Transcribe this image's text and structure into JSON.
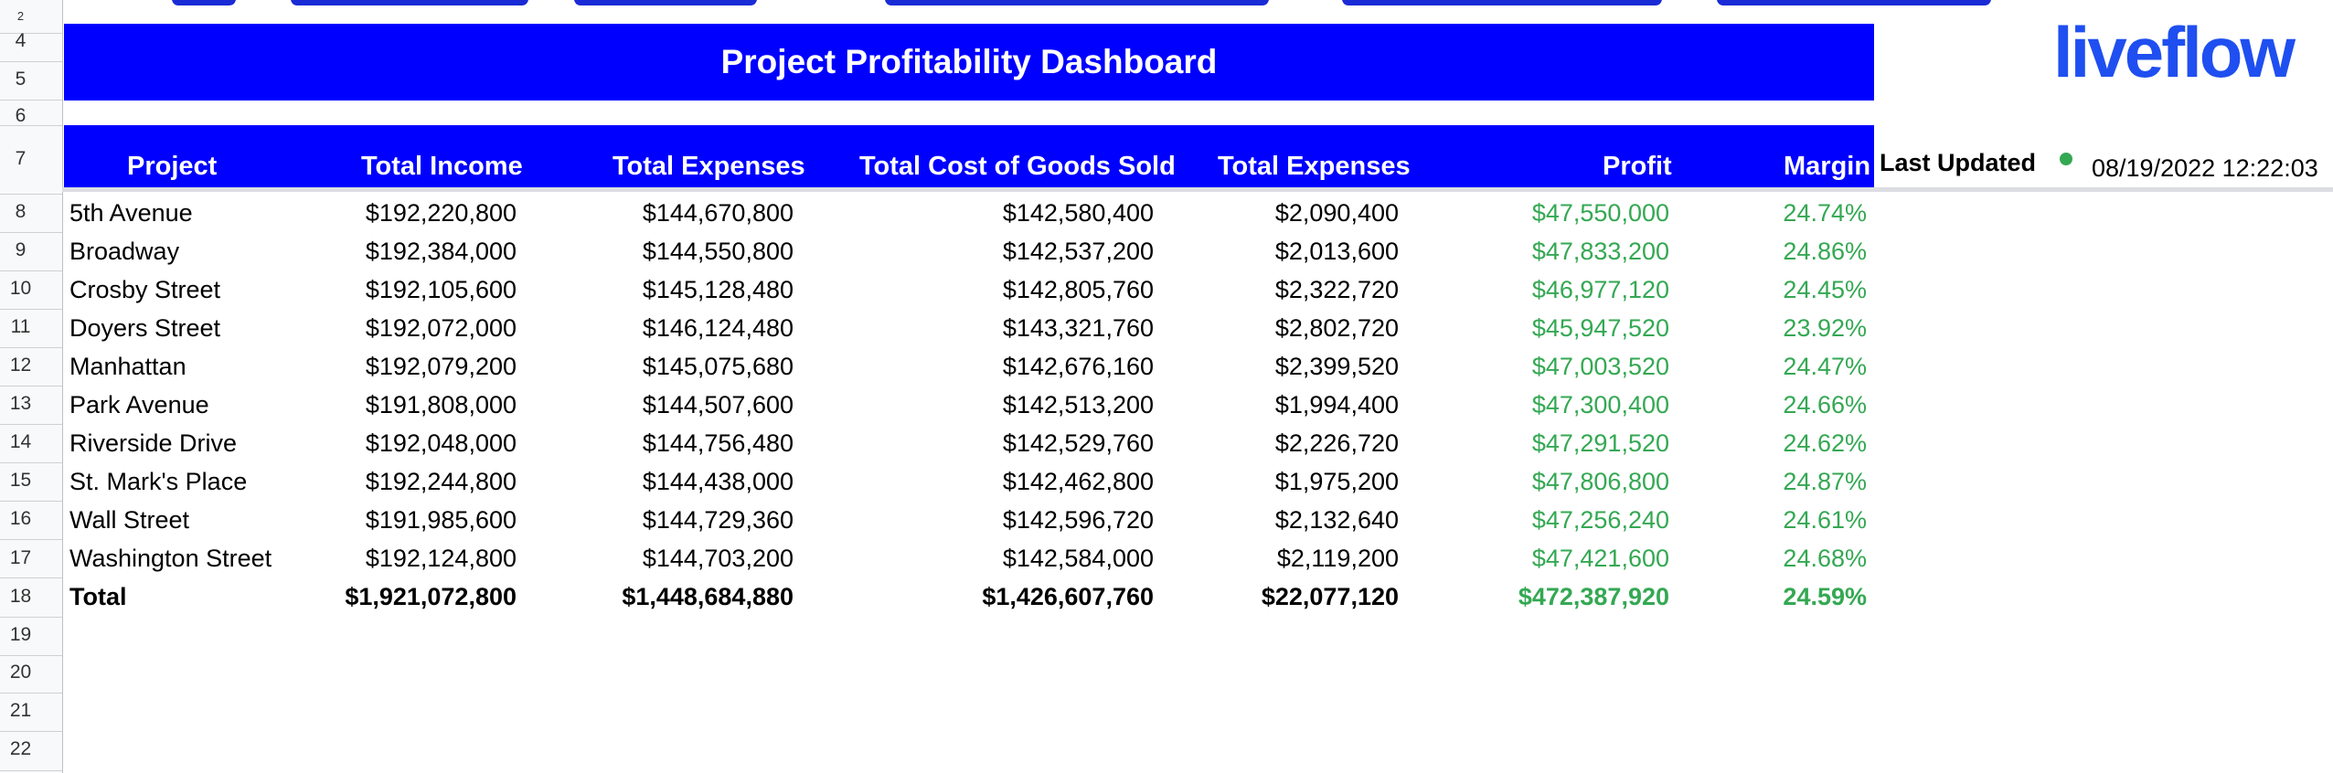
{
  "row_numbers": [
    "2",
    "4",
    "5",
    "6",
    "7",
    "8",
    "9",
    "10",
    "11",
    "12",
    "13",
    "14",
    "15",
    "16",
    "17",
    "18",
    "19",
    "20",
    "21",
    "22"
  ],
  "dashboard": {
    "title": "Project Profitability Dashboard",
    "logo": "liveflow",
    "last_updated_label": "Last Updated",
    "last_updated_value": "08/19/2022 12:22:03",
    "status_color": "#34a853",
    "accent_color": "#0000ff"
  },
  "table": {
    "headers": [
      "Project",
      "Total Income",
      "Total Expenses",
      "Total Cost of Goods Sold",
      "Total Expenses",
      "Profit",
      "Margin"
    ],
    "rows": [
      [
        "5th Avenue",
        "$192,220,800",
        "$144,670,800",
        "$142,580,400",
        "$2,090,400",
        "$47,550,000",
        "24.74%"
      ],
      [
        "Broadway",
        "$192,384,000",
        "$144,550,800",
        "$142,537,200",
        "$2,013,600",
        "$47,833,200",
        "24.86%"
      ],
      [
        "Crosby Street",
        "$192,105,600",
        "$145,128,480",
        "$142,805,760",
        "$2,322,720",
        "$46,977,120",
        "24.45%"
      ],
      [
        "Doyers Street",
        "$192,072,000",
        "$146,124,480",
        "$143,321,760",
        "$2,802,720",
        "$45,947,520",
        "23.92%"
      ],
      [
        "Manhattan",
        "$192,079,200",
        "$145,075,680",
        "$142,676,160",
        "$2,399,520",
        "$47,003,520",
        "24.47%"
      ],
      [
        "Park Avenue",
        "$191,808,000",
        "$144,507,600",
        "$142,513,200",
        "$1,994,400",
        "$47,300,400",
        "24.66%"
      ],
      [
        "Riverside Drive",
        "$192,048,000",
        "$144,756,480",
        "$142,529,760",
        "$2,226,720",
        "$47,291,520",
        "24.62%"
      ],
      [
        "St. Mark's Place",
        "$192,244,800",
        "$144,438,000",
        "$142,462,800",
        "$1,975,200",
        "$47,806,800",
        "24.87%"
      ],
      [
        "Wall Street",
        "$191,985,600",
        "$144,729,360",
        "$142,596,720",
        "$2,132,640",
        "$47,256,240",
        "24.61%"
      ],
      [
        "Washington Street",
        "$192,124,800",
        "$144,703,200",
        "$142,584,000",
        "$2,119,200",
        "$47,421,600",
        "24.68%"
      ]
    ],
    "total": [
      "Total",
      "$1,921,072,800",
      "$1,448,684,880",
      "$1,426,607,760",
      "$22,077,120",
      "$472,387,920",
      "24.59%"
    ]
  }
}
